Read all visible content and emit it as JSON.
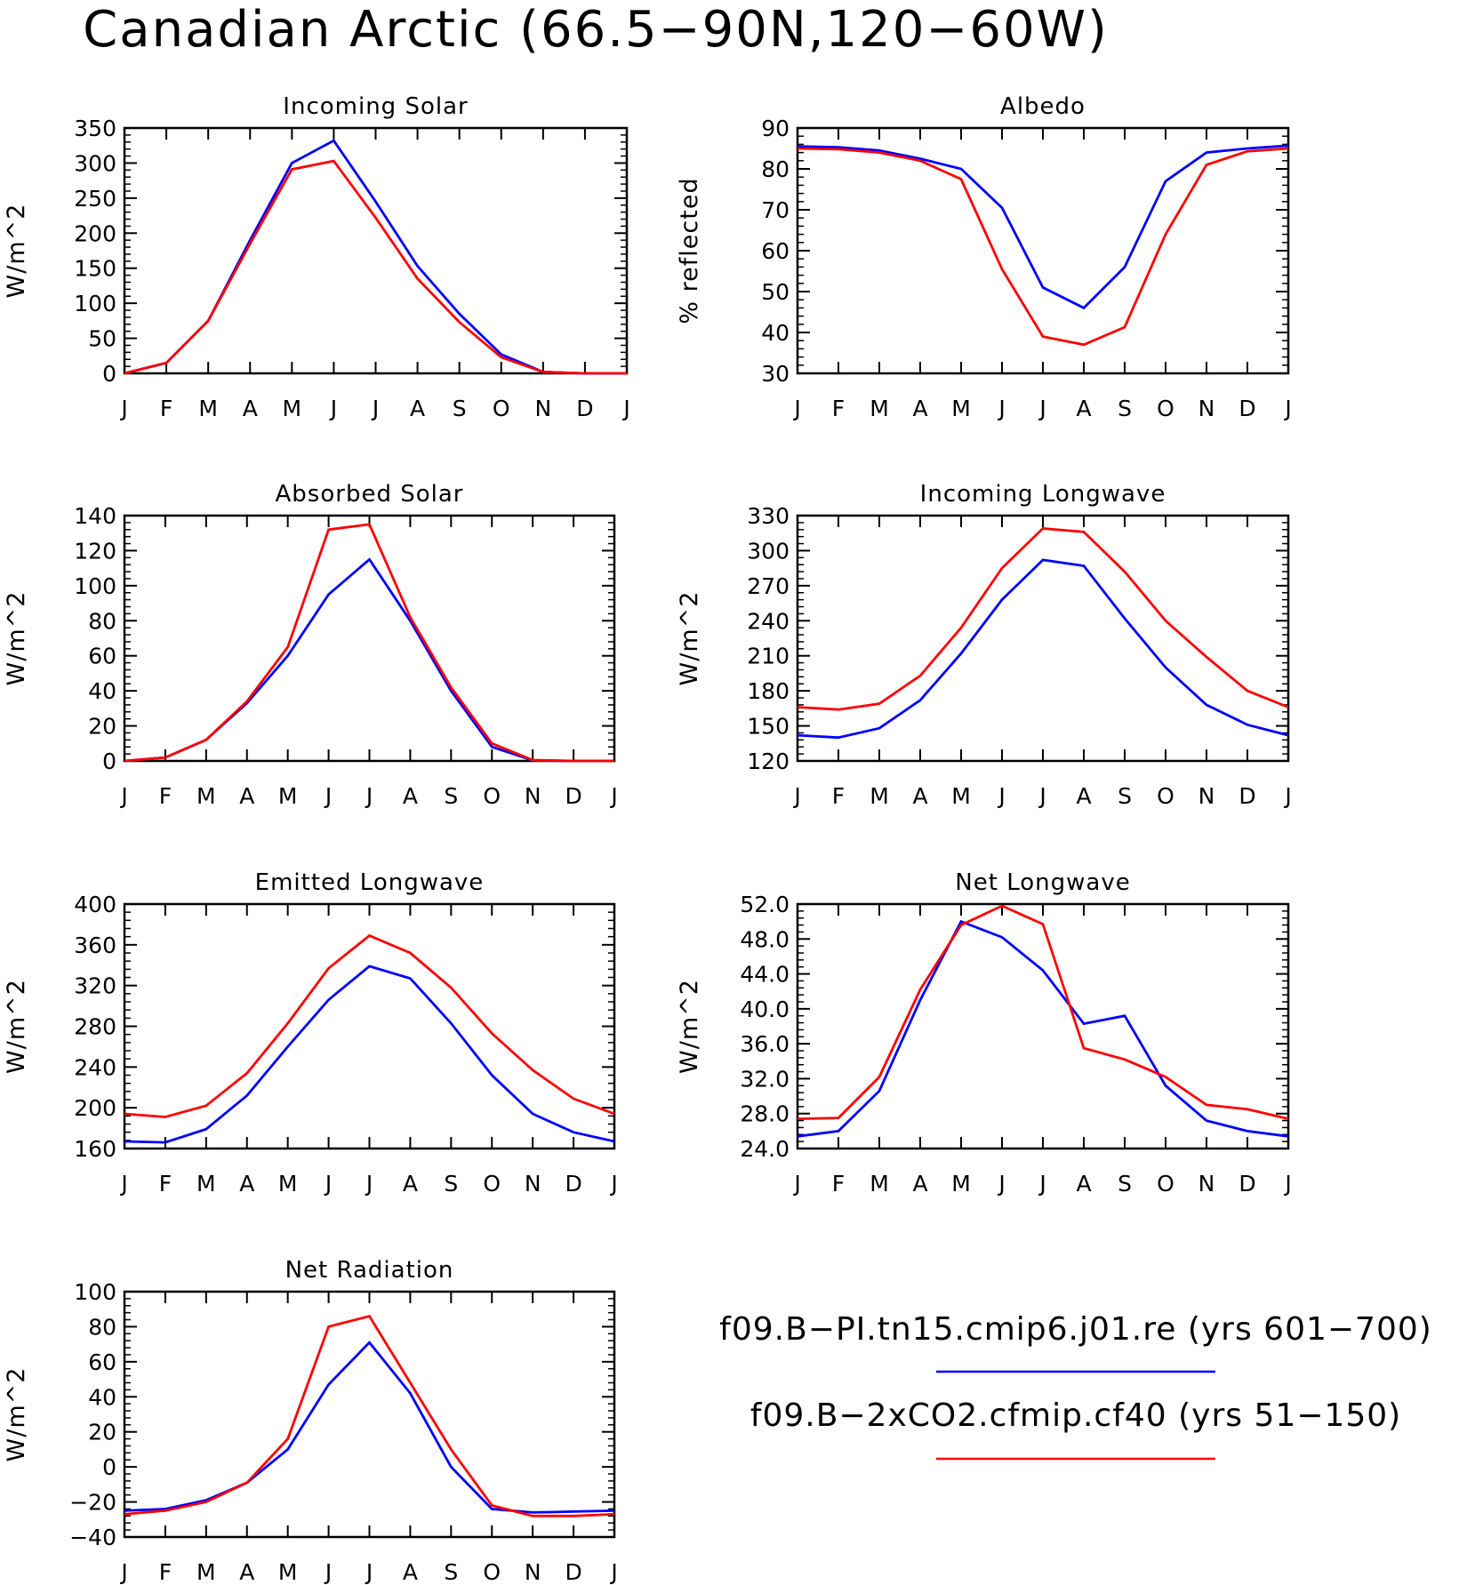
{
  "page": {
    "title": "Canadian Arctic (66.5−90N,120−60W)"
  },
  "colors": {
    "pi_control": "#0000ff",
    "co2x2": "#ff0000"
  },
  "legend": [
    {
      "label": "f09.B−PI.tn15.cmip6.j01.re (yrs 601−700)",
      "color": "#0000ff"
    },
    {
      "label": "f09.B−2xCO2.cfmip.cf40 (yrs 51−150)",
      "color": "#ff0000"
    }
  ],
  "chart_data": [
    {
      "type": "line",
      "title": "Incoming Solar",
      "ylabel": "W/m^2",
      "xlabel": "",
      "categories": [
        "J",
        "F",
        "M",
        "A",
        "M",
        "J",
        "J",
        "A",
        "S",
        "O",
        "N",
        "D",
        "J"
      ],
      "ylim": [
        0,
        350
      ],
      "yticks": [
        0,
        50,
        100,
        150,
        200,
        250,
        300,
        350
      ],
      "ytick_labels": [
        "0",
        "50",
        "100",
        "150",
        "200",
        "250",
        "300",
        "350"
      ],
      "series": [
        {
          "values": [
            0,
            15,
            75,
            190,
            300,
            332,
            245,
            153,
            85,
            27,
            2,
            0,
            0
          ],
          "color": "#0000ff"
        },
        {
          "values": [
            0,
            15,
            75,
            185,
            291,
            303,
            222,
            135,
            73,
            23,
            2,
            0,
            0
          ],
          "color": "#ff0000"
        }
      ]
    },
    {
      "type": "line",
      "title": "Albedo",
      "ylabel": "% reflected",
      "xlabel": "",
      "categories": [
        "J",
        "F",
        "M",
        "A",
        "M",
        "J",
        "J",
        "A",
        "S",
        "O",
        "N",
        "D",
        "J"
      ],
      "ylim": [
        30,
        90
      ],
      "yticks": [
        30,
        40,
        50,
        60,
        70,
        80,
        90
      ],
      "ytick_labels": [
        "30",
        "40",
        "50",
        "60",
        "70",
        "80",
        "90"
      ],
      "series": [
        {
          "values": [
            85.5,
            85.3,
            84.5,
            82.5,
            80,
            70.5,
            51,
            46,
            56,
            77,
            84,
            85,
            85.7
          ],
          "color": "#0000ff"
        },
        {
          "values": [
            85,
            84.8,
            84,
            82,
            77.5,
            55.5,
            39,
            37,
            41.3,
            64,
            81,
            84.3,
            85
          ],
          "color": "#ff0000"
        }
      ]
    },
    {
      "type": "line",
      "title": "Absorbed Solar",
      "ylabel": "W/m^2",
      "xlabel": "",
      "categories": [
        "J",
        "F",
        "M",
        "A",
        "M",
        "J",
        "J",
        "A",
        "S",
        "O",
        "N",
        "D",
        "J"
      ],
      "ylim": [
        0,
        140
      ],
      "yticks": [
        0,
        20,
        40,
        60,
        80,
        100,
        120,
        140
      ],
      "ytick_labels": [
        "0",
        "20",
        "40",
        "60",
        "80",
        "100",
        "120",
        "140"
      ],
      "series": [
        {
          "values": [
            0,
            2,
            12,
            33,
            60,
            95,
            115,
            80,
            40,
            8,
            0.3,
            0,
            0
          ],
          "color": "#0000ff"
        },
        {
          "values": [
            0,
            2,
            12,
            34,
            65,
            132,
            135,
            82,
            42,
            10,
            0.5,
            0,
            0
          ],
          "color": "#ff0000"
        }
      ]
    },
    {
      "type": "line",
      "title": "Incoming Longwave",
      "ylabel": "W/m^2",
      "xlabel": "",
      "categories": [
        "J",
        "F",
        "M",
        "A",
        "M",
        "J",
        "J",
        "A",
        "S",
        "O",
        "N",
        "D",
        "J"
      ],
      "ylim": [
        120,
        330
      ],
      "yticks": [
        120,
        150,
        180,
        210,
        240,
        270,
        300,
        330
      ],
      "ytick_labels": [
        "120",
        "150",
        "180",
        "210",
        "240",
        "270",
        "300",
        "330"
      ],
      "series": [
        {
          "values": [
            142,
            140,
            148,
            172,
            212,
            258,
            292,
            287,
            242,
            200,
            168,
            151,
            142
          ],
          "color": "#0000ff"
        },
        {
          "values": [
            166,
            164,
            169,
            193,
            234,
            285,
            319,
            316,
            282,
            240,
            209,
            180,
            166
          ],
          "color": "#ff0000"
        }
      ]
    },
    {
      "type": "line",
      "title": "Emitted Longwave",
      "ylabel": "W/m^2",
      "xlabel": "",
      "categories": [
        "J",
        "F",
        "M",
        "A",
        "M",
        "J",
        "J",
        "A",
        "S",
        "O",
        "N",
        "D",
        "J"
      ],
      "ylim": [
        160,
        400
      ],
      "yticks": [
        160,
        200,
        240,
        280,
        320,
        360,
        400
      ],
      "ytick_labels": [
        "160",
        "200",
        "240",
        "280",
        "320",
        "360",
        "400"
      ],
      "series": [
        {
          "values": [
            167,
            166,
            179,
            212,
            260,
            306,
            339,
            327,
            283,
            232,
            194,
            176,
            167
          ],
          "color": "#0000ff"
        },
        {
          "values": [
            194,
            191,
            202,
            234,
            283,
            337,
            369,
            352,
            318,
            273,
            237,
            209,
            194
          ],
          "color": "#ff0000"
        }
      ]
    },
    {
      "type": "line",
      "title": "Net Longwave",
      "ylabel": "W/m^2",
      "xlabel": "",
      "categories": [
        "J",
        "F",
        "M",
        "A",
        "M",
        "J",
        "J",
        "A",
        "S",
        "O",
        "N",
        "D",
        "J"
      ],
      "ylim": [
        24,
        52
      ],
      "yticks": [
        24,
        28,
        32,
        36,
        40,
        44,
        48,
        52
      ],
      "ytick_labels": [
        "24.0",
        "28.0",
        "32.0",
        "36.0",
        "40.0",
        "44.0",
        "48.0",
        "52.0"
      ],
      "series": [
        {
          "values": [
            25.4,
            26,
            30.6,
            41,
            50,
            48.2,
            44.4,
            38.3,
            39.2,
            31.2,
            27.2,
            26,
            25.4
          ],
          "color": "#0000ff"
        },
        {
          "values": [
            27.4,
            27.5,
            32.2,
            42.2,
            49.6,
            51.8,
            49.7,
            35.5,
            34.2,
            32.2,
            29,
            28.5,
            27.4
          ],
          "color": "#ff0000"
        }
      ]
    },
    {
      "type": "line",
      "title": "Net Radiation",
      "ylabel": "W/m^2",
      "xlabel": "",
      "categories": [
        "J",
        "F",
        "M",
        "A",
        "M",
        "J",
        "J",
        "A",
        "S",
        "O",
        "N",
        "D",
        "J"
      ],
      "ylim": [
        -40,
        100
      ],
      "yticks": [
        -40,
        -20,
        0,
        20,
        40,
        60,
        80,
        100
      ],
      "ytick_labels": [
        "−40",
        "−20",
        "0",
        "20",
        "40",
        "60",
        "80",
        "100"
      ],
      "series": [
        {
          "values": [
            -25,
            -24,
            -19,
            -9,
            10,
            47,
            71,
            42,
            0,
            -24,
            -26,
            -25.5,
            -25
          ],
          "color": "#0000ff"
        },
        {
          "values": [
            -27,
            -25,
            -20,
            -9,
            16,
            80,
            86,
            48,
            10,
            -22,
            -28,
            -28,
            -27
          ],
          "color": "#ff0000"
        }
      ]
    }
  ]
}
